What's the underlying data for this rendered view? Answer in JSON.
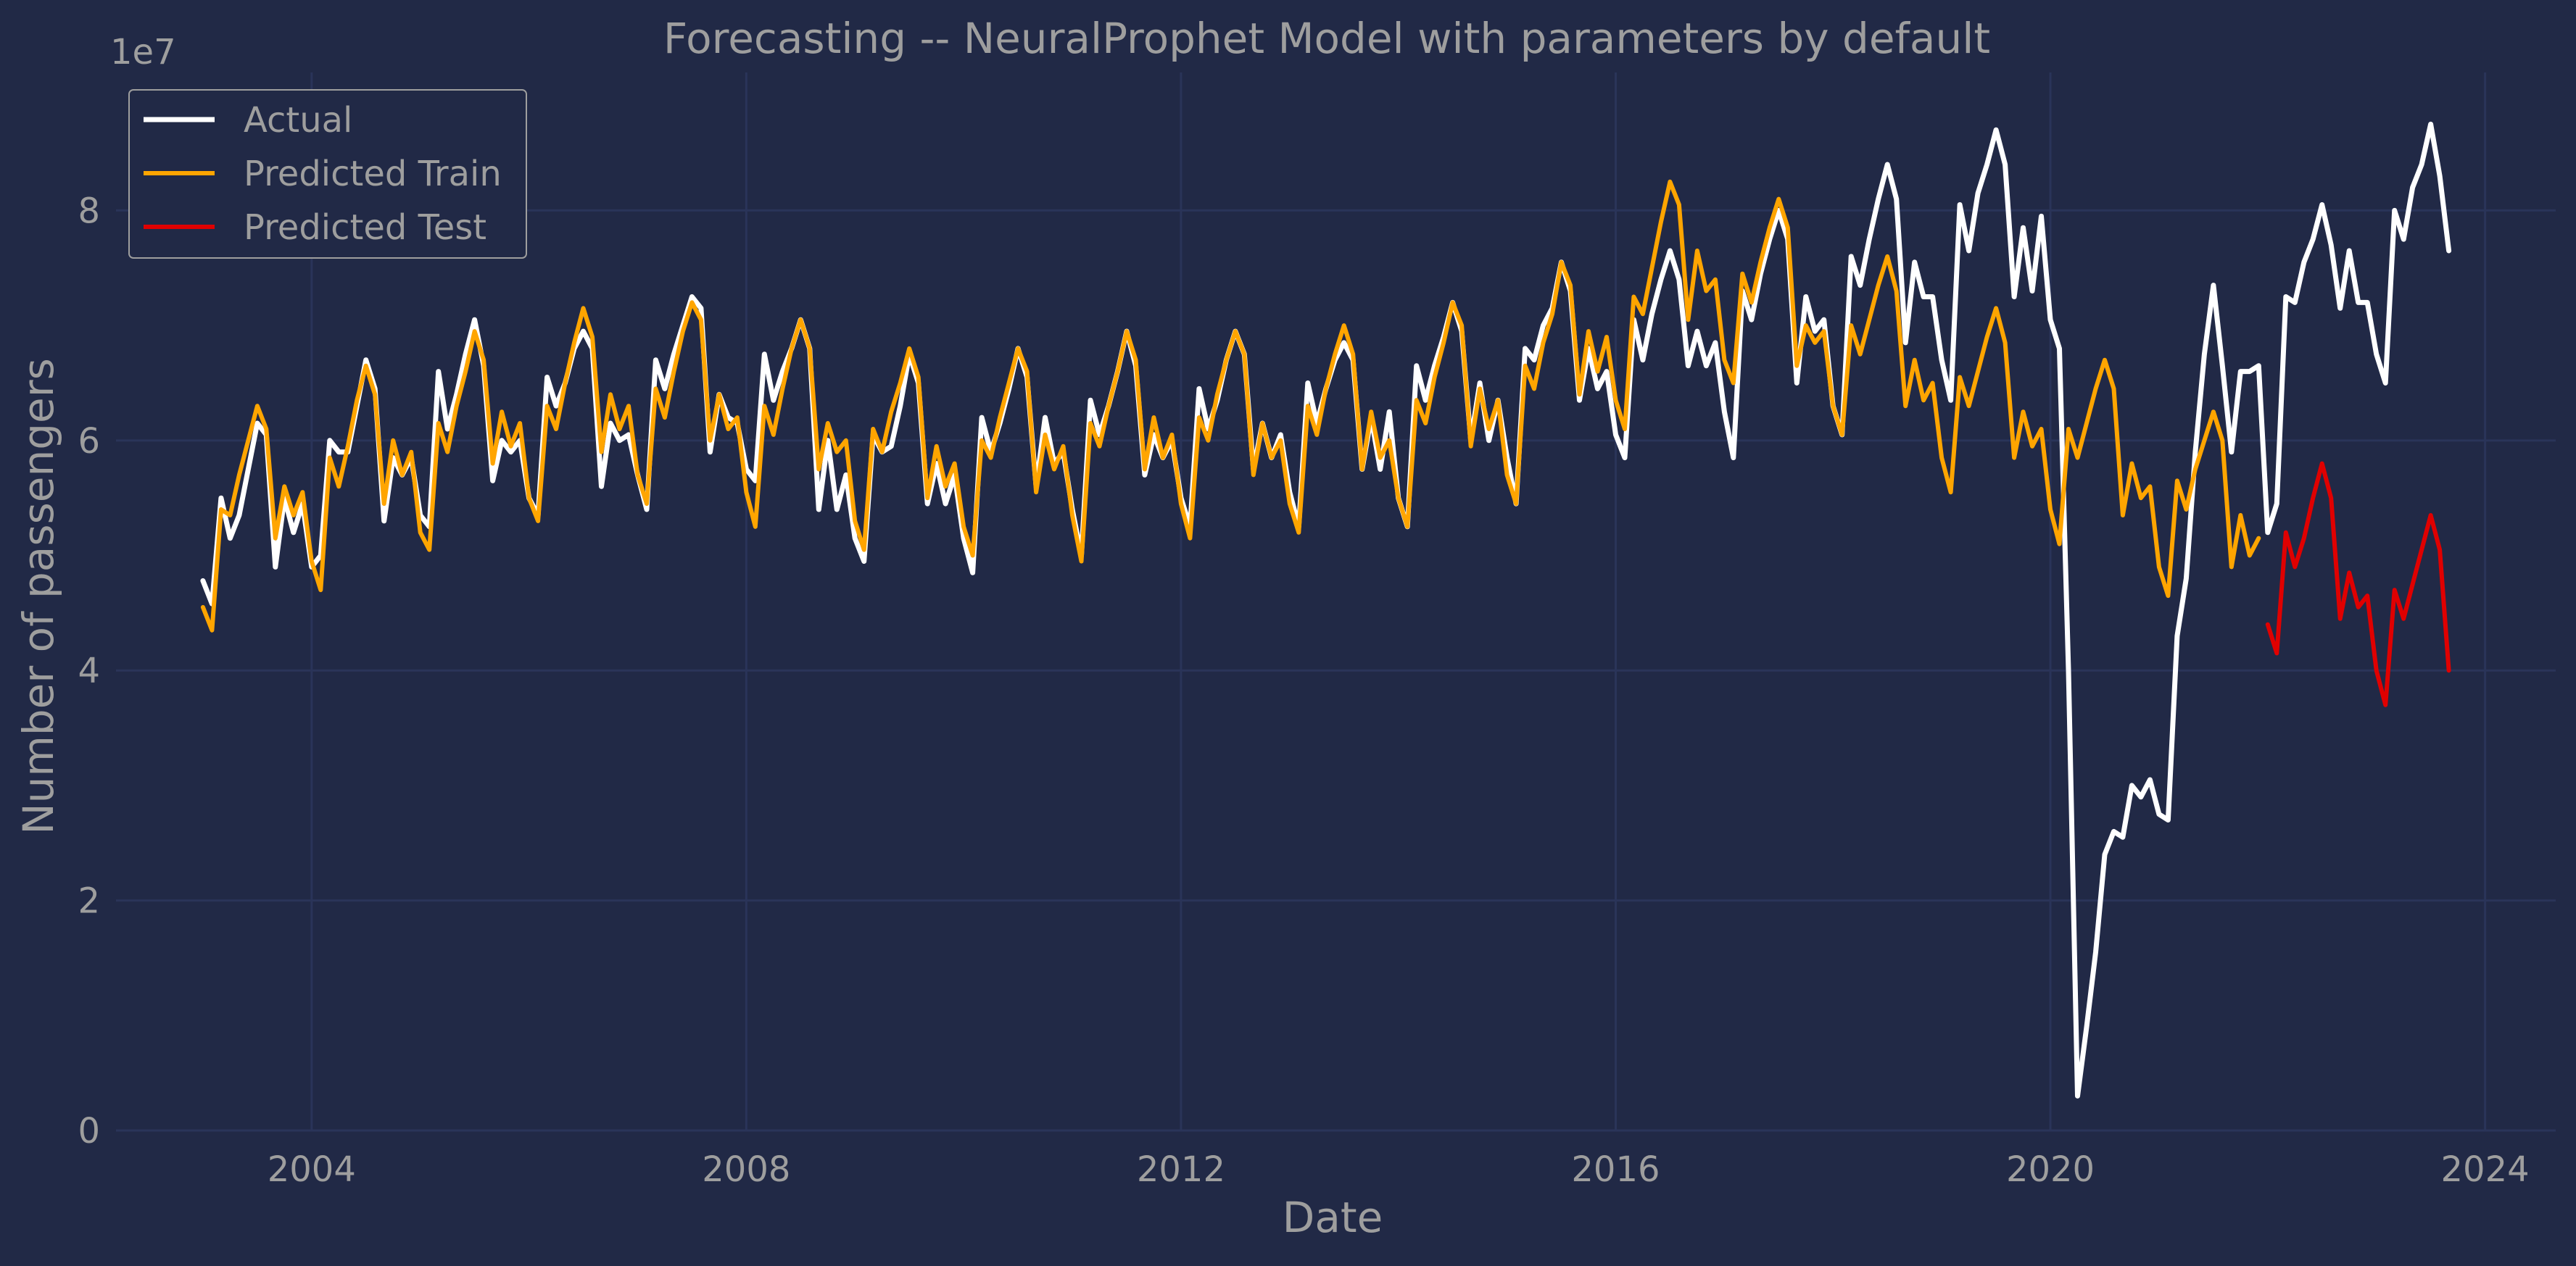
{
  "chart_data": {
    "type": "line",
    "title": "Forecasting -- NeuralProphet Model with parameters by default",
    "xlabel": "Date",
    "ylabel": "Number of passengers",
    "y_offset_label": "1e7",
    "xlim": [
      2002.2,
      2024.65
    ],
    "ylim": [
      0,
      9.2
    ],
    "x_ticks": [
      2004,
      2008,
      2012,
      2016,
      2020,
      2024
    ],
    "x_tick_labels": [
      "2004",
      "2008",
      "2012",
      "2016",
      "2020",
      "2024"
    ],
    "y_ticks": [
      0,
      2,
      4,
      6,
      8
    ],
    "y_tick_labels": [
      "0",
      "2",
      "4",
      "6",
      "8"
    ],
    "grid": true,
    "legend_position": "upper-left",
    "colors": {
      "background": "#212946",
      "grid": "#2a3459",
      "text": "#9e9e9e"
    },
    "series": [
      {
        "name": "Actual",
        "color": "#ffffff",
        "line_width": 7,
        "start": [
          2003,
          1
        ],
        "values": [
          4.78,
          4.58,
          5.5,
          5.15,
          5.35,
          5.75,
          6.15,
          6.05,
          4.9,
          5.5,
          5.2,
          5.45,
          4.9,
          5.0,
          6.0,
          5.9,
          5.9,
          6.3,
          6.7,
          6.45,
          5.3,
          5.85,
          5.7,
          5.85,
          5.35,
          5.25,
          6.6,
          6.1,
          6.4,
          6.75,
          7.05,
          6.65,
          5.65,
          6.0,
          5.9,
          6.0,
          5.5,
          5.35,
          6.55,
          6.3,
          6.5,
          6.8,
          6.95,
          6.8,
          5.6,
          6.15,
          6.0,
          6.05,
          5.7,
          5.4,
          6.7,
          6.45,
          6.75,
          7.0,
          7.25,
          7.15,
          5.9,
          6.4,
          6.2,
          6.15,
          5.75,
          5.65,
          6.75,
          6.35,
          6.6,
          6.8,
          7.05,
          6.8,
          5.4,
          6.0,
          5.4,
          5.7,
          5.15,
          4.95,
          6.05,
          5.9,
          5.95,
          6.3,
          6.75,
          6.5,
          5.45,
          5.8,
          5.45,
          5.7,
          5.15,
          4.85,
          6.2,
          5.9,
          6.15,
          6.45,
          6.8,
          6.55,
          5.6,
          6.2,
          5.8,
          5.9,
          5.4,
          5.0,
          6.35,
          6.05,
          6.3,
          6.6,
          6.95,
          6.65,
          5.7,
          6.05,
          5.85,
          6.0,
          5.5,
          5.25,
          6.45,
          6.1,
          6.35,
          6.7,
          6.95,
          6.75,
          5.75,
          6.15,
          5.85,
          6.05,
          5.55,
          5.25,
          6.5,
          6.15,
          6.45,
          6.7,
          6.85,
          6.7,
          5.75,
          6.2,
          5.75,
          6.25,
          5.5,
          5.25,
          6.65,
          6.35,
          6.65,
          6.9,
          7.2,
          6.95,
          6.0,
          6.5,
          6.0,
          6.35,
          5.85,
          5.45,
          6.8,
          6.7,
          7.0,
          7.15,
          7.55,
          7.3,
          6.35,
          6.8,
          6.45,
          6.6,
          6.05,
          5.85,
          7.05,
          6.7,
          7.1,
          7.4,
          7.65,
          7.4,
          6.65,
          6.95,
          6.65,
          6.85,
          6.25,
          5.85,
          7.3,
          7.05,
          7.45,
          7.75,
          8.0,
          7.75,
          6.5,
          7.25,
          6.95,
          7.05,
          6.3,
          6.05,
          7.6,
          7.35,
          7.75,
          8.1,
          8.4,
          8.1,
          6.85,
          7.55,
          7.25,
          7.25,
          6.7,
          6.35,
          8.05,
          7.65,
          8.15,
          8.4,
          8.7,
          8.4,
          7.25,
          7.85,
          7.3,
          7.95,
          7.05,
          6.8,
          4.0,
          0.3,
          0.9,
          1.55,
          2.4,
          2.6,
          2.55,
          3.0,
          2.9,
          3.05,
          2.75,
          2.7,
          4.3,
          4.8,
          5.9,
          6.75,
          7.35,
          6.65,
          5.9,
          6.6,
          6.6,
          6.65,
          5.2,
          5.45,
          7.25,
          7.2,
          7.55,
          7.75,
          8.05,
          7.7,
          7.15,
          7.65,
          7.2,
          7.2,
          6.75,
          6.5,
          8.0,
          7.75,
          8.2,
          8.4,
          8.75,
          8.3,
          7.65
        ]
      },
      {
        "name": "Predicted Train",
        "color": "#ffa500",
        "line_width": 6,
        "start": [
          2003,
          1
        ],
        "values": [
          4.55,
          4.35,
          5.4,
          5.35,
          5.7,
          6.0,
          6.3,
          6.1,
          5.15,
          5.6,
          5.35,
          5.55,
          4.95,
          4.7,
          5.85,
          5.6,
          5.95,
          6.35,
          6.65,
          6.4,
          5.45,
          6.0,
          5.7,
          5.9,
          5.2,
          5.05,
          6.15,
          5.9,
          6.3,
          6.6,
          6.95,
          6.7,
          5.8,
          6.25,
          5.95,
          6.15,
          5.5,
          5.3,
          6.3,
          6.1,
          6.5,
          6.85,
          7.15,
          6.9,
          5.9,
          6.4,
          6.1,
          6.3,
          5.7,
          5.45,
          6.45,
          6.2,
          6.6,
          6.95,
          7.2,
          7.05,
          6.0,
          6.4,
          6.1,
          6.2,
          5.55,
          5.25,
          6.3,
          6.05,
          6.45,
          6.8,
          7.05,
          6.8,
          5.75,
          6.15,
          5.9,
          6.0,
          5.3,
          5.05,
          6.1,
          5.9,
          6.25,
          6.5,
          6.8,
          6.55,
          5.5,
          5.95,
          5.6,
          5.8,
          5.25,
          5.0,
          6.0,
          5.85,
          6.2,
          6.5,
          6.8,
          6.6,
          5.55,
          6.05,
          5.75,
          5.95,
          5.35,
          4.95,
          6.15,
          5.95,
          6.3,
          6.6,
          6.95,
          6.7,
          5.75,
          6.2,
          5.85,
          6.05,
          5.45,
          5.15,
          6.2,
          6.0,
          6.4,
          6.7,
          6.95,
          6.75,
          5.7,
          6.15,
          5.85,
          6.0,
          5.45,
          5.2,
          6.3,
          6.05,
          6.45,
          6.75,
          7.0,
          6.75,
          5.75,
          6.25,
          5.85,
          6.0,
          5.5,
          5.25,
          6.35,
          6.15,
          6.55,
          6.85,
          7.2,
          7.0,
          5.95,
          6.45,
          6.1,
          6.35,
          5.7,
          5.45,
          6.65,
          6.45,
          6.85,
          7.1,
          7.55,
          7.35,
          6.4,
          6.95,
          6.6,
          6.9,
          6.35,
          6.1,
          7.25,
          7.1,
          7.5,
          7.9,
          8.25,
          8.05,
          7.05,
          7.65,
          7.3,
          7.4,
          6.7,
          6.5,
          7.45,
          7.2,
          7.55,
          7.85,
          8.1,
          7.85,
          6.65,
          7.0,
          6.85,
          6.95,
          6.3,
          6.05,
          7.0,
          6.75,
          7.05,
          7.35,
          7.6,
          7.3,
          6.3,
          6.7,
          6.35,
          6.5,
          5.85,
          5.55,
          6.55,
          6.3,
          6.6,
          6.9,
          7.15,
          6.85,
          5.85,
          6.25,
          5.95,
          6.1,
          5.4,
          5.1,
          6.1,
          5.85,
          6.15,
          6.45,
          6.7,
          6.45,
          5.35,
          5.8,
          5.5,
          5.6,
          4.9,
          4.65,
          5.65,
          5.4,
          5.75,
          6.0,
          6.25,
          6.0,
          4.9,
          5.35,
          5.0,
          5.15
        ]
      },
      {
        "name": "Predicted Test",
        "color": "#e00000",
        "line_width": 6,
        "start": [
          2022,
          1
        ],
        "values": [
          4.4,
          4.15,
          5.2,
          4.9,
          5.15,
          5.5,
          5.8,
          5.5,
          4.45,
          4.85,
          4.55,
          4.65,
          4.0,
          3.7,
          4.7,
          4.45,
          4.75,
          5.05,
          5.35,
          5.05,
          4.0
        ]
      }
    ]
  }
}
